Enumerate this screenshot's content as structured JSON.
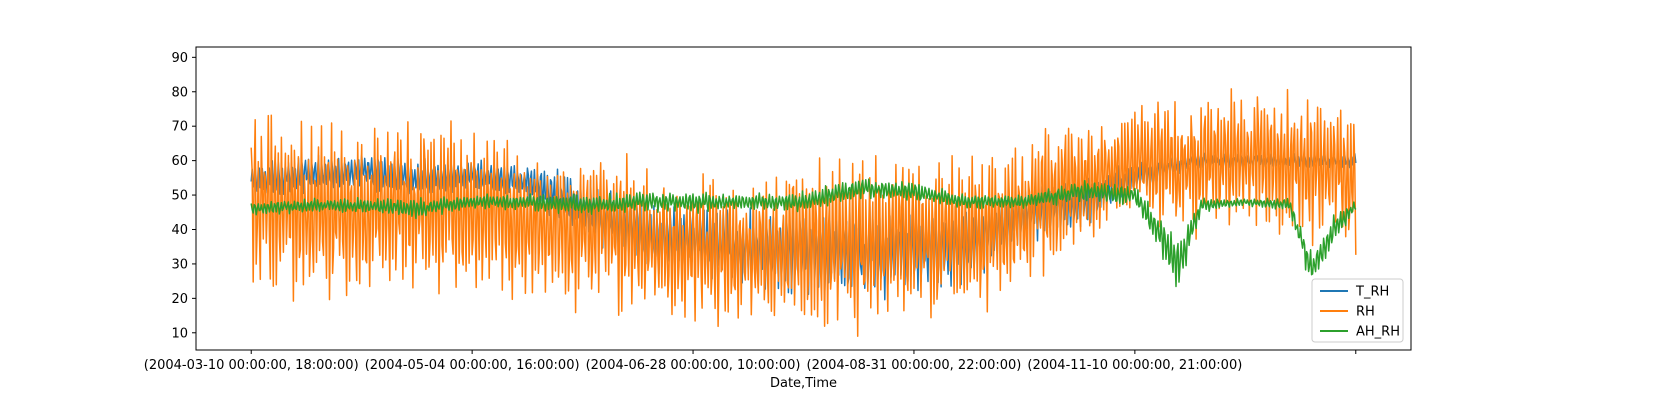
{
  "chart_data": {
    "type": "line",
    "title": "",
    "xlabel": "Date,Time",
    "ylabel": "",
    "ylim": [
      5,
      93
    ],
    "yticks": [
      10,
      20,
      30,
      40,
      50,
      60,
      70,
      80,
      90
    ],
    "x_range": [
      -0.05,
      1.05
    ],
    "xticks": [
      {
        "pos": 0.0,
        "label": "(2004-03-10 00:00:00, 18:00:00)"
      },
      {
        "pos": 0.2,
        "label": "(2004-05-04 00:00:00, 16:00:00)"
      },
      {
        "pos": 0.4,
        "label": "(2004-06-28 00:00:00, 10:00:00)"
      },
      {
        "pos": 0.6,
        "label": "(2004-08-31 00:00:00, 22:00:00)"
      },
      {
        "pos": 0.8,
        "label": "(2004-11-10 00:00:00, 21:00:00)"
      },
      {
        "pos": 1.0,
        "label": ""
      }
    ],
    "grid": false,
    "legend_position": "lower-right",
    "series": [
      {
        "name": "T_RH",
        "color": "#1f77b4",
        "x": [
          0.0,
          0.05,
          0.1,
          0.15,
          0.2,
          0.25,
          0.3,
          0.35,
          0.4,
          0.45,
          0.5,
          0.55,
          0.6,
          0.65,
          0.7,
          0.75,
          0.8,
          0.85,
          0.9,
          0.95,
          1.0
        ],
        "values": [
          55,
          56,
          57,
          55,
          56,
          54,
          46,
          40,
          37,
          34,
          34,
          33,
          34,
          36,
          45,
          47,
          55,
          60,
          60,
          60,
          60
        ],
        "amplitude": [
          5,
          5,
          5,
          5,
          4,
          5,
          9,
          10,
          11,
          12,
          13,
          13,
          12,
          11,
          8,
          7,
          5,
          2,
          2,
          2,
          2
        ]
      },
      {
        "name": "RH",
        "color": "#ff7f0e",
        "x": [
          0.0,
          0.05,
          0.1,
          0.15,
          0.2,
          0.25,
          0.3,
          0.35,
          0.4,
          0.45,
          0.5,
          0.55,
          0.6,
          0.65,
          0.7,
          0.75,
          0.8,
          0.85,
          0.9,
          0.95,
          1.0
        ],
        "values": [
          48,
          45,
          45,
          48,
          45,
          42,
          40,
          38,
          34,
          33,
          36,
          38,
          38,
          38,
          45,
          53,
          60,
          58,
          62,
          60,
          55
        ],
        "amplitude": [
          25,
          24,
          24,
          24,
          23,
          22,
          22,
          21,
          21,
          21,
          24,
          24,
          23,
          22,
          22,
          17,
          17,
          20,
          19,
          20,
          20
        ]
      },
      {
        "name": "AH_RH",
        "color": "#2ca02c",
        "x": [
          0.0,
          0.05,
          0.1,
          0.15,
          0.2,
          0.25,
          0.3,
          0.35,
          0.4,
          0.45,
          0.5,
          0.55,
          0.6,
          0.65,
          0.7,
          0.75,
          0.8,
          0.82,
          0.84,
          0.86,
          0.9,
          0.94,
          0.96,
          0.98,
          1.0
        ],
        "values": [
          46,
          47,
          47,
          46,
          48,
          48,
          47,
          48,
          48,
          48,
          48,
          52,
          51,
          48,
          48,
          51,
          50,
          40,
          30,
          47,
          48,
          47,
          28,
          40,
          47
        ],
        "amplitude": [
          2,
          2,
          2,
          3,
          2,
          2,
          3,
          3,
          3,
          2,
          3,
          3,
          3,
          2,
          2,
          3,
          3,
          5,
          8,
          2,
          1,
          2,
          5,
          4,
          2
        ]
      }
    ]
  }
}
